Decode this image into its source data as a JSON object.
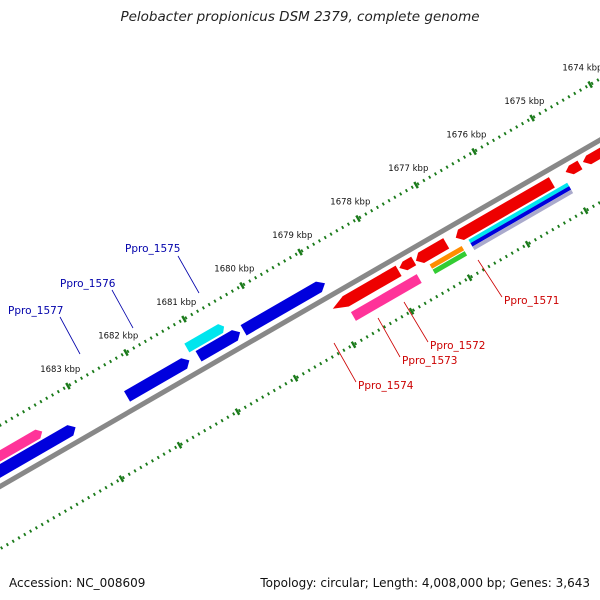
{
  "title": "Pelobacter propionicus DSM 2379, complete genome",
  "footer": {
    "accession": "Accession: NC_008609",
    "stats": "Topology: circular; Length: 4,008,000 bp; Genes: 3,643"
  },
  "ticks": [
    {
      "label": "1674 kbp",
      "kb": 1674
    },
    {
      "label": "1675 kbp",
      "kb": 1675
    },
    {
      "label": "1676 kbp",
      "kb": 1676
    },
    {
      "label": "1677 kbp",
      "kb": 1677
    },
    {
      "label": "1678 kbp",
      "kb": 1678
    },
    {
      "label": "1679 kbp",
      "kb": 1679
    },
    {
      "label": "1680 kbp",
      "kb": 1680
    },
    {
      "label": "1681 kbp",
      "kb": 1681
    },
    {
      "label": "1682 kbp",
      "kb": 1682
    },
    {
      "label": "1683 kbp",
      "kb": 1683
    }
  ],
  "gene_labels": [
    {
      "name": "Ppro_1571",
      "color": "#cc0000",
      "strand": "reverse"
    },
    {
      "name": "Ppro_1572",
      "color": "#cc0000",
      "strand": "reverse"
    },
    {
      "name": "Ppro_1573",
      "color": "#cc0000",
      "strand": "reverse"
    },
    {
      "name": "Ppro_1574",
      "color": "#cc0000",
      "strand": "reverse"
    },
    {
      "name": "Ppro_1575",
      "color": "#0000aa",
      "strand": "forward"
    },
    {
      "name": "Ppro_1576",
      "color": "#0000aa",
      "strand": "forward"
    },
    {
      "name": "Ppro_1577",
      "color": "#0000aa",
      "strand": "forward"
    }
  ],
  "colors": {
    "backbone": "#888888",
    "tick": "#1a7a1a",
    "forward_cds": "#0000dd",
    "reverse_cds": "#ee0000",
    "cyan_feature": "#00e5ee",
    "pink_feature": "#ff3399",
    "orange_feature": "#ff8c00",
    "green_feature": "#33cc33"
  }
}
